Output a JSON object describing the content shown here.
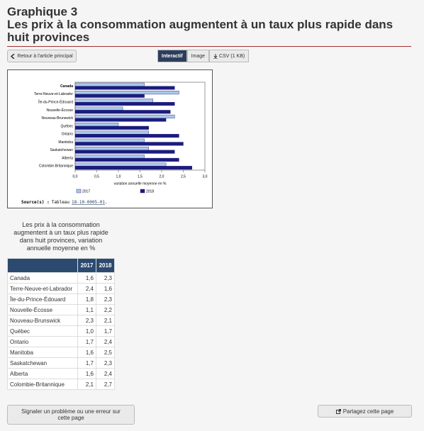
{
  "header": {
    "kicker": "Graphique 3",
    "title": "Les prix à la consommation augmentent à un taux plus rapide dans huit provinces"
  },
  "nav": {
    "back": "Retour à l'article principal",
    "tabs": [
      "Interactif",
      "Image",
      "CSV (1 KB)"
    ]
  },
  "chart_data": {
    "type": "bar",
    "orientation": "horizontal",
    "categories": [
      "Canada",
      "Terre-Neuve-et-Labrador",
      "Île-du-Prince-Édouard",
      "Nouvelle-Écosse",
      "Nouveau-Brunswick",
      "Québec",
      "Ontario",
      "Manitoba",
      "Saskatchewan",
      "Alberta",
      "Colombie-Britannique"
    ],
    "series": [
      {
        "name": "2017",
        "color": "#a9c9ea",
        "values": [
          1.6,
          2.4,
          1.8,
          1.1,
          2.3,
          1.0,
          1.7,
          1.6,
          1.7,
          1.6,
          2.1
        ]
      },
      {
        "name": "2018",
        "color": "#1c1c7c",
        "values": [
          2.3,
          1.6,
          2.3,
          2.2,
          2.1,
          1.7,
          2.4,
          2.5,
          2.3,
          2.4,
          2.7
        ]
      }
    ],
    "xlim": [
      0,
      3
    ],
    "xticks": [
      {
        "value": 0,
        "label": "0,0"
      },
      {
        "value": 0.5,
        "label": "0,5"
      },
      {
        "value": 1,
        "label": "1,0"
      },
      {
        "value": 1.5,
        "label": "1,5"
      },
      {
        "value": 2,
        "label": "2,0"
      },
      {
        "value": 2.5,
        "label": "2,5"
      },
      {
        "value": 3,
        "label": "3,0"
      }
    ],
    "x_label": "variation annuelle moyenne en %",
    "legend": "bottom",
    "source": {
      "label": "Source(s) :",
      "prefix": "Tableau",
      "link": "18-10-0005-01",
      "suffix": "."
    }
  },
  "table": {
    "caption": "Les prix à la consommation augmentent à un taux plus rapide dans huit provinces, variation annuelle moyenne en %",
    "columns": [
      "2017",
      "2018"
    ],
    "rows": [
      [
        "Canada",
        "1,6",
        "2,3"
      ],
      [
        "Terre-Neuve-et-Labrador",
        "2,4",
        "1,6"
      ],
      [
        "Île-du-Prince-Édouard",
        "1,8",
        "2,3"
      ],
      [
        "Nouvelle-Écosse",
        "1,1",
        "2,2"
      ],
      [
        "Nouveau-Brunswick",
        "2,3",
        "2,1"
      ],
      [
        "Québec",
        "1,0",
        "1,7"
      ],
      [
        "Ontario",
        "1,7",
        "2,4"
      ],
      [
        "Manitoba",
        "1,6",
        "2,5"
      ],
      [
        "Saskatchewan",
        "1,7",
        "2,3"
      ],
      [
        "Alberta",
        "1,6",
        "2,4"
      ],
      [
        "Colombie-Britannique",
        "2,1",
        "2,7"
      ]
    ]
  },
  "footer": {
    "report": "Signaler un problème ou une erreur sur cette page",
    "share": "Partagez cette page"
  }
}
